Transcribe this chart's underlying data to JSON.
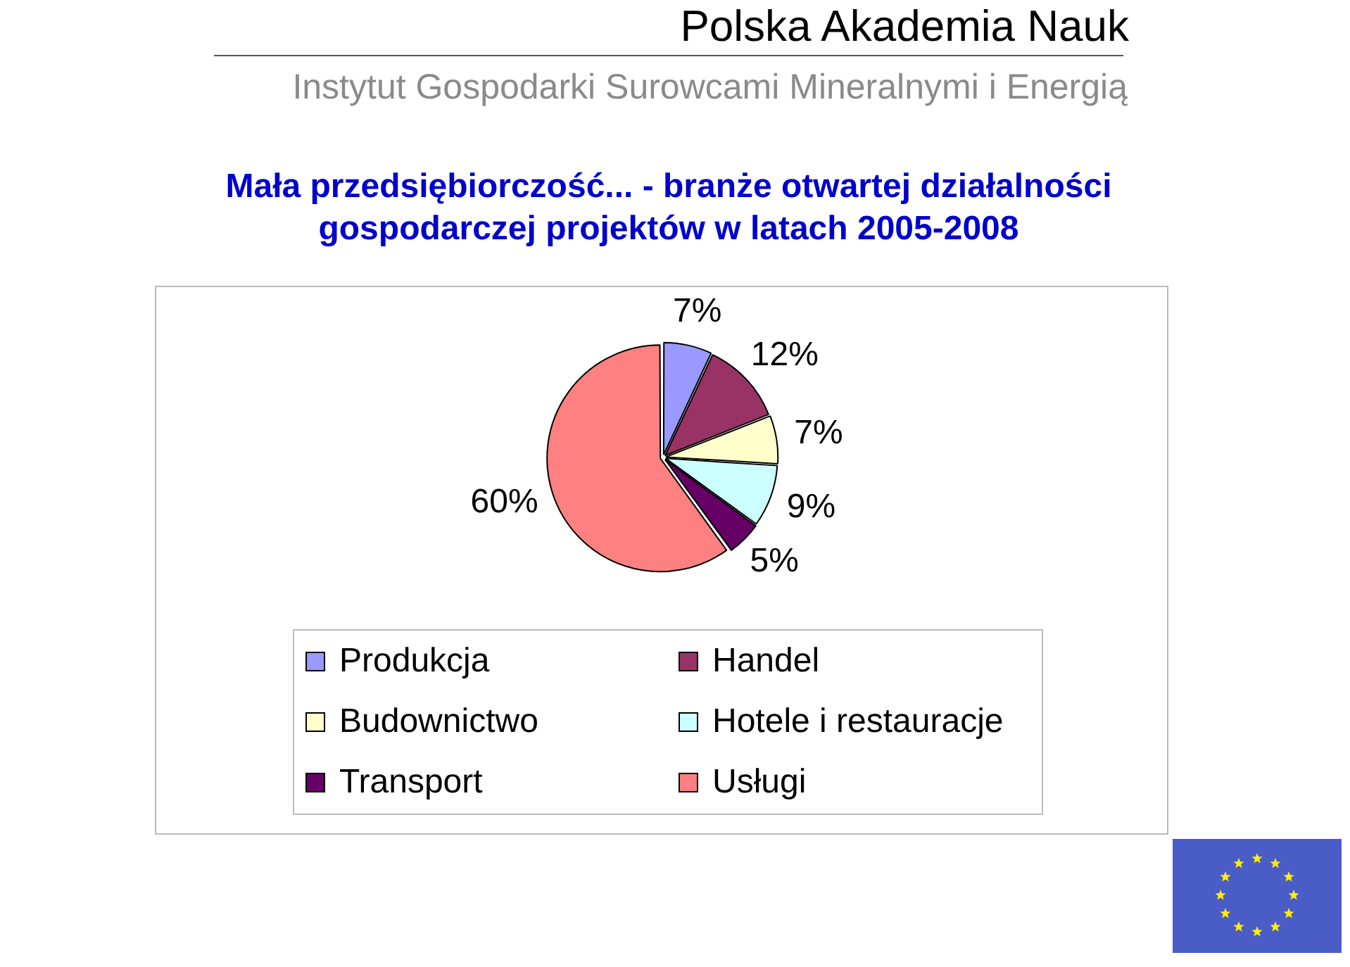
{
  "chart_data": {
    "type": "pie",
    "title": "Mała przedsiębiorczość... - branże otwartej działalności gospodarczej projektów w latach 2005-2008",
    "annotations": [
      "Polska Akademia Nauk",
      "Instytut Gospodarki Surowcami Mineralnymi i Energią"
    ],
    "categories": [
      "Produkcja",
      "Handel",
      "Budownictwo",
      "Hotele i restauracje",
      "Transport",
      "Usługi"
    ],
    "values": [
      7,
      12,
      7,
      9,
      5,
      60
    ],
    "colors": [
      "#9999ff",
      "#993366",
      "#ffffcc",
      "#ccffff",
      "#660066",
      "#ff8080"
    ],
    "value_labels": [
      "7%",
      "12%",
      "7%",
      "9%",
      "5%",
      "60%"
    ],
    "legend": "bottom"
  }
}
